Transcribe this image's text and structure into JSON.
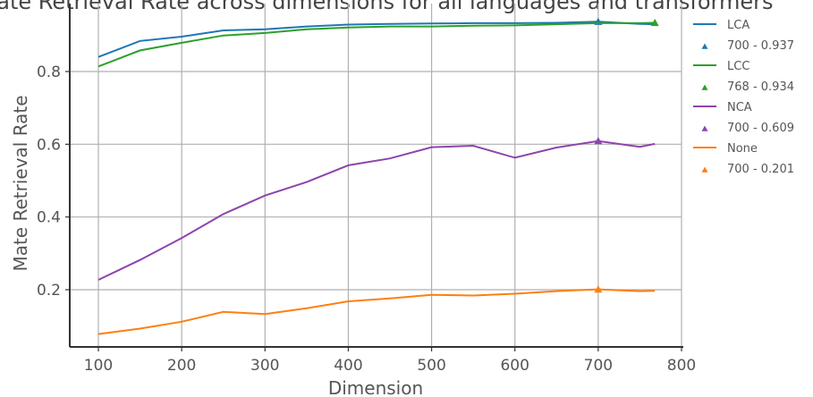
{
  "chart_data": {
    "type": "line",
    "title": "Mate Retrieval Rate across dimensions for all languages and transformers",
    "xlabel": "Dimension",
    "ylabel": "Mate Retrieval Rate",
    "xlim": [
      65,
      805
    ],
    "ylim": [
      0.03,
      1.0
    ],
    "xticks": [
      100,
      200,
      300,
      400,
      500,
      600,
      700,
      800
    ],
    "yticks": [
      0.2,
      0.4,
      0.6,
      0.8
    ],
    "grid": true,
    "legend_position": "right-outside",
    "x": [
      100,
      150,
      200,
      250,
      300,
      350,
      400,
      450,
      500,
      550,
      600,
      650,
      700,
      750,
      768
    ],
    "series": [
      {
        "name": "LCA",
        "color": "#1f77b4",
        "values": [
          0.84,
          0.884,
          0.896,
          0.913,
          0.916,
          0.924,
          0.929,
          0.931,
          0.932,
          0.933,
          0.933,
          0.934,
          0.937,
          0.931,
          0.93
        ],
        "best": {
          "x": 700,
          "y": 0.937,
          "label": "700 - 0.937"
        }
      },
      {
        "name": "LCC",
        "color": "#2ca02c",
        "values": [
          0.814,
          0.858,
          0.879,
          0.899,
          0.906,
          0.916,
          0.921,
          0.924,
          0.924,
          0.926,
          0.927,
          0.93,
          0.933,
          0.933,
          0.934
        ],
        "best": {
          "x": 768,
          "y": 0.934,
          "label": "768 - 0.934"
        }
      },
      {
        "name": "NCA",
        "color": "#8e44ad",
        "values": [
          0.227,
          0.282,
          0.342,
          0.408,
          0.459,
          0.496,
          0.542,
          0.561,
          0.592,
          0.596,
          0.563,
          0.591,
          0.609,
          0.593,
          0.601
        ],
        "best": {
          "x": 700,
          "y": 0.609,
          "label": "700 - 0.609"
        }
      },
      {
        "name": "None",
        "color": "#ff7f0e",
        "values": [
          0.078,
          0.093,
          0.112,
          0.139,
          0.133,
          0.149,
          0.168,
          0.176,
          0.186,
          0.184,
          0.189,
          0.196,
          0.201,
          0.196,
          0.197
        ],
        "best": {
          "x": 700,
          "y": 0.201,
          "label": "700 - 0.201"
        }
      }
    ]
  }
}
